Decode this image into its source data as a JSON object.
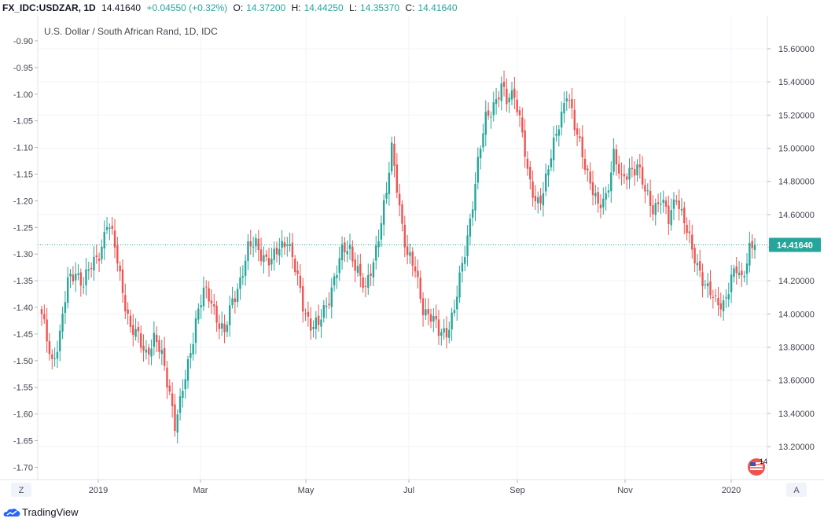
{
  "header": {
    "symbol": "FX_IDC:USDZAR, 1D",
    "last": "14.41640",
    "change": "+0.04550 (+0.32%)",
    "open_label": "O:",
    "open": "14.37200",
    "high_label": "H:",
    "high": "14.44250",
    "low_label": "L:",
    "low": "14.35370",
    "close_label": "C:",
    "close": "14.41640"
  },
  "chart_title": "U.S. Dollar / South African Rand, 1D, IDC",
  "colors": {
    "up": "#26a69a",
    "down": "#ef5350",
    "priceline": "#26a69a",
    "grid": "#f0f3fa"
  },
  "footer": {
    "brand": "TradingView",
    "z_button": "Z",
    "a_button": "A"
  },
  "event_badge": {
    "count": "14"
  },
  "chart_data": {
    "type": "candlestick",
    "title": "U.S. Dollar / South African Rand, 1D, IDC",
    "right_axis": {
      "min": 13.1,
      "max": 15.7,
      "ticks": [
        "13.20000",
        "13.40000",
        "13.60000",
        "13.80000",
        "14.00000",
        "14.20000",
        "14.40000",
        "14.60000",
        "14.80000",
        "15.00000",
        "15.20000",
        "15.40000",
        "15.60000"
      ]
    },
    "left_axis": {
      "ticks": [
        "-0.90",
        "-0.95",
        "-1.00",
        "-1.05",
        "-1.10",
        "-1.15",
        "-1.20",
        "-1.25",
        "-1.30",
        "-1.35",
        "-1.40",
        "-1.45",
        "-1.50",
        "-1.55",
        "-1.60",
        "-1.65",
        "-1.70"
      ]
    },
    "x_ticks": [
      "2019",
      "Mar",
      "May",
      "Jul",
      "Sep",
      "Nov",
      "2020"
    ],
    "last_price": 14.4164,
    "last_price_label": "14.41640",
    "keypoints": [
      [
        0,
        13.97
      ],
      [
        4,
        13.72
      ],
      [
        7,
        13.87
      ],
      [
        10,
        14.18
      ],
      [
        13,
        14.27
      ],
      [
        16,
        14.18
      ],
      [
        20,
        14.31
      ],
      [
        23,
        14.42
      ],
      [
        25,
        14.55
      ],
      [
        28,
        14.4
      ],
      [
        31,
        14.16
      ],
      [
        34,
        13.9
      ],
      [
        37,
        13.85
      ],
      [
        40,
        13.78
      ],
      [
        43,
        13.84
      ],
      [
        46,
        13.74
      ],
      [
        49,
        13.55
      ],
      [
        51,
        13.33
      ],
      [
        53,
        13.44
      ],
      [
        56,
        13.7
      ],
      [
        59,
        13.97
      ],
      [
        62,
        14.12
      ],
      [
        65,
        14.08
      ],
      [
        68,
        13.95
      ],
      [
        70,
        13.87
      ],
      [
        73,
        14.07
      ],
      [
        76,
        14.22
      ],
      [
        79,
        14.38
      ],
      [
        82,
        14.42
      ],
      [
        85,
        14.36
      ],
      [
        88,
        14.3
      ],
      [
        91,
        14.4
      ],
      [
        94,
        14.47
      ],
      [
        97,
        14.26
      ],
      [
        100,
        14.05
      ],
      [
        103,
        13.95
      ],
      [
        106,
        13.92
      ],
      [
        109,
        14.05
      ],
      [
        112,
        14.23
      ],
      [
        115,
        14.36
      ],
      [
        118,
        14.39
      ],
      [
        121,
        14.28
      ],
      [
        124,
        14.12
      ],
      [
        127,
        14.32
      ],
      [
        130,
        14.58
      ],
      [
        132,
        14.72
      ],
      [
        134,
        14.98
      ],
      [
        136,
        14.78
      ],
      [
        138,
        14.55
      ],
      [
        140,
        14.35
      ],
      [
        143,
        14.25
      ],
      [
        146,
        14.05
      ],
      [
        149,
        13.98
      ],
      [
        152,
        13.88
      ],
      [
        155,
        13.91
      ],
      [
        158,
        14.02
      ],
      [
        161,
        14.28
      ],
      [
        164,
        14.58
      ],
      [
        167,
        14.9
      ],
      [
        170,
        15.17
      ],
      [
        173,
        15.28
      ],
      [
        176,
        15.36
      ],
      [
        178,
        15.27
      ],
      [
        181,
        15.35
      ],
      [
        184,
        15.1
      ],
      [
        186,
        14.82
      ],
      [
        189,
        14.68
      ],
      [
        192,
        14.75
      ],
      [
        195,
        14.93
      ],
      [
        198,
        15.16
      ],
      [
        201,
        15.35
      ],
      [
        204,
        15.11
      ],
      [
        207,
        14.98
      ],
      [
        210,
        14.8
      ],
      [
        213,
        14.62
      ],
      [
        216,
        14.72
      ],
      [
        219,
        14.97
      ],
      [
        222,
        14.78
      ],
      [
        225,
        14.88
      ],
      [
        228,
        14.9
      ],
      [
        231,
        14.72
      ],
      [
        234,
        14.65
      ],
      [
        237,
        14.7
      ],
      [
        240,
        14.55
      ],
      [
        243,
        14.73
      ],
      [
        246,
        14.56
      ],
      [
        249,
        14.36
      ],
      [
        252,
        14.27
      ],
      [
        255,
        14.15
      ],
      [
        258,
        14.05
      ],
      [
        261,
        14.08
      ],
      [
        264,
        14.21
      ],
      [
        266,
        14.25
      ],
      [
        268,
        14.2
      ],
      [
        271,
        14.42
      ],
      [
        273,
        14.4164
      ]
    ]
  }
}
